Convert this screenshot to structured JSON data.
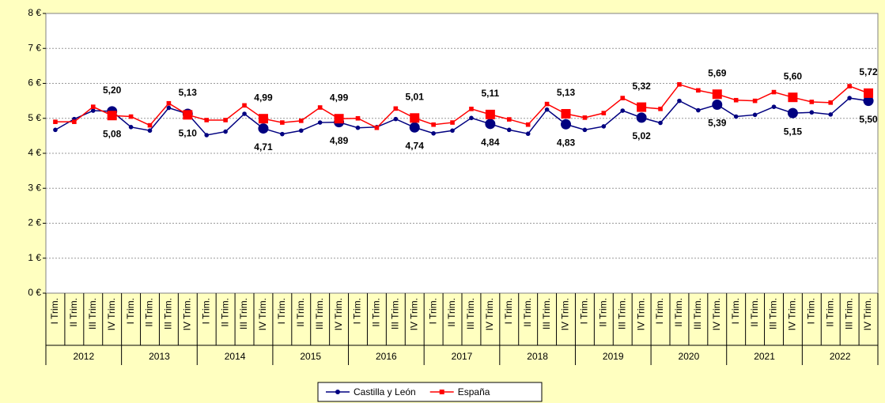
{
  "chart_data": {
    "type": "line",
    "categories": [
      "I Trim.",
      "II Trim.",
      "III Trim.",
      "IV Trim.",
      "I Trim.",
      "II Trim.",
      "III Trim.",
      "IV Trim.",
      "I Trim.",
      "II Trim.",
      "III Trim.",
      "IV Trim.",
      "I Trim.",
      "II Trim.",
      "III Trim.",
      "IV Trim.",
      "I Trim.",
      "II Trim.",
      "III Trim.",
      "IV Trim.",
      "I Trim.",
      "II Trim.",
      "III Trim.",
      "IV Trim.",
      "I Trim.",
      "II Trim.",
      "III Trim.",
      "IV Trim.",
      "I Trim.",
      "II Trim.",
      "III Trim.",
      "IV Trim.",
      "I Trim.",
      "II Trim.",
      "III Trim.",
      "IV Trim.",
      "I Trim.",
      "II Trim.",
      "III Trim.",
      "IV Trim.",
      "I Trim.",
      "II Trim.",
      "III Trim.",
      "IV Trim."
    ],
    "x_groups": [
      "2012",
      "2013",
      "2014",
      "2015",
      "2016",
      "2017",
      "2018",
      "2019",
      "2020",
      "2021",
      "2022"
    ],
    "ylim": [
      0,
      8
    ],
    "yticks": [
      {
        "value": 0,
        "label": "0 €"
      },
      {
        "value": 1,
        "label": "1 €"
      },
      {
        "value": 2,
        "label": "2 €"
      },
      {
        "value": 3,
        "label": "3 €"
      },
      {
        "value": 4,
        "label": "4 €"
      },
      {
        "value": 5,
        "label": "5 €"
      },
      {
        "value": 6,
        "label": "6 €"
      },
      {
        "value": 7,
        "label": "7 €"
      },
      {
        "value": 8,
        "label": "8 €"
      }
    ],
    "grid": true,
    "legend": "bottom",
    "series": [
      {
        "name": "Castilla y León",
        "color": "#000080",
        "values": [
          4.67,
          4.98,
          5.22,
          5.2,
          4.75,
          4.65,
          5.3,
          5.13,
          4.52,
          4.62,
          5.13,
          4.71,
          4.55,
          4.65,
          4.88,
          4.89,
          4.73,
          4.75,
          4.98,
          4.74,
          4.57,
          4.65,
          5.01,
          4.84,
          4.67,
          4.56,
          5.25,
          4.83,
          4.67,
          4.77,
          5.22,
          5.02,
          4.87,
          5.5,
          5.23,
          5.39,
          5.05,
          5.1,
          5.33,
          5.15,
          5.17,
          5.11,
          5.58,
          5.5
        ],
        "value_labels": [
          null,
          null,
          null,
          "5,20",
          null,
          null,
          null,
          "5,13",
          null,
          null,
          null,
          "4,71",
          null,
          null,
          null,
          "4,89",
          null,
          null,
          null,
          "4,74",
          null,
          null,
          null,
          "4,84",
          null,
          null,
          null,
          "4,83",
          null,
          null,
          null,
          "5,02",
          null,
          null,
          null,
          "5,39",
          null,
          null,
          null,
          "5,15",
          null,
          null,
          null,
          "5,50"
        ]
      },
      {
        "name": "España",
        "color": "#ff0000",
        "values": [
          4.9,
          4.9,
          5.33,
          5.08,
          5.05,
          4.8,
          5.43,
          5.1,
          4.95,
          4.95,
          5.37,
          4.99,
          4.88,
          4.93,
          5.31,
          4.99,
          5.0,
          4.73,
          5.28,
          5.01,
          4.82,
          4.88,
          5.27,
          5.11,
          4.97,
          4.82,
          5.41,
          5.13,
          5.02,
          5.15,
          5.58,
          5.32,
          5.27,
          5.97,
          5.8,
          5.69,
          5.52,
          5.5,
          5.75,
          5.6,
          5.47,
          5.45,
          5.92,
          5.72
        ],
        "value_labels": [
          null,
          null,
          null,
          "5,08",
          null,
          null,
          null,
          "5,10",
          null,
          null,
          null,
          "4,99",
          null,
          null,
          null,
          "4,99",
          null,
          null,
          null,
          "5,01",
          null,
          null,
          null,
          "5,11",
          null,
          null,
          null,
          "5,13",
          null,
          null,
          null,
          "5,32",
          null,
          null,
          null,
          "5,69",
          null,
          null,
          null,
          "5,60",
          null,
          null,
          null,
          "5,72"
        ]
      }
    ]
  }
}
